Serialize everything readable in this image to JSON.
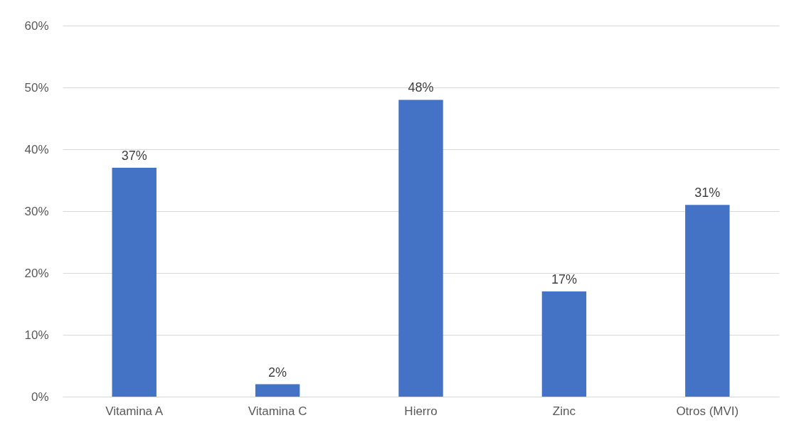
{
  "chart_data": {
    "type": "bar",
    "categories": [
      "Vitamina A",
      "Vitamina C",
      "Hierro",
      "Zinc",
      "Otros (MVI)"
    ],
    "values": [
      37,
      2,
      48,
      17,
      31
    ],
    "value_labels": [
      "37%",
      "2%",
      "48%",
      "17%",
      "31%"
    ],
    "color": "#4472c4",
    "ylim": [
      0,
      60
    ],
    "yticks": [
      {
        "value": 0,
        "label": "0%"
      },
      {
        "value": 10,
        "label": "10%"
      },
      {
        "value": 20,
        "label": "20%"
      },
      {
        "value": 30,
        "label": "30%"
      },
      {
        "value": 40,
        "label": "40%"
      },
      {
        "value": 50,
        "label": "50%"
      },
      {
        "value": 60,
        "label": "60%"
      }
    ],
    "grid": "y"
  }
}
